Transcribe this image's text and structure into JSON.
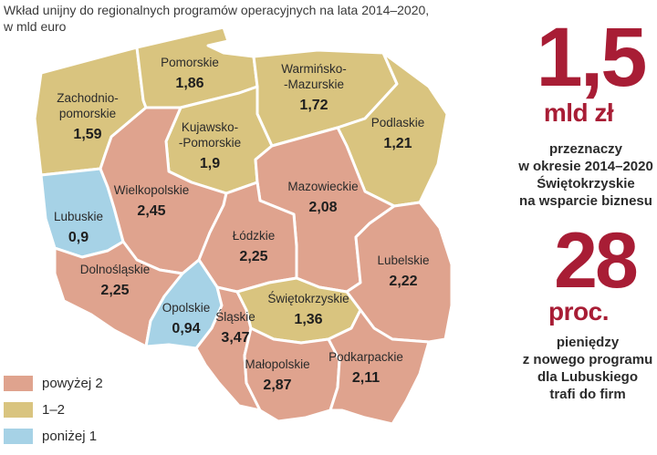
{
  "header": {
    "line1": "Wkład unijny do regionalnych programów operacyjnych na lata 2014–2020,",
    "line2": "w mld euro"
  },
  "colors": {
    "above_2": "#dfa38e",
    "from_1_to_2": "#d9c47f",
    "below_1": "#a6d2e6",
    "accent": "#a81d35",
    "border": "#ffffff"
  },
  "regions": [
    {
      "id": "zachodniopomorskie",
      "name_lines": [
        "Zachodnio-",
        "pomorskie"
      ],
      "value": "1,59",
      "category": "from_1_to_2"
    },
    {
      "id": "pomorskie",
      "name_lines": [
        "Pomorskie"
      ],
      "value": "1,86",
      "category": "from_1_to_2"
    },
    {
      "id": "warminsko-mazurskie",
      "name_lines": [
        "Warmińsko-",
        "-Mazurskie"
      ],
      "value": "1,72",
      "category": "from_1_to_2"
    },
    {
      "id": "podlaskie",
      "name_lines": [
        "Podlaskie"
      ],
      "value": "1,21",
      "category": "from_1_to_2"
    },
    {
      "id": "kujawsko-pomorskie",
      "name_lines": [
        "Kujawsko-",
        "-Pomorskie"
      ],
      "value": "1,9",
      "category": "from_1_to_2"
    },
    {
      "id": "lubuskie",
      "name_lines": [
        "Lubuskie"
      ],
      "value": "0,9",
      "category": "below_1"
    },
    {
      "id": "wielkopolskie",
      "name_lines": [
        "Wielkopolskie"
      ],
      "value": "2,45",
      "category": "above_2"
    },
    {
      "id": "mazowieckie",
      "name_lines": [
        "Mazowieckie"
      ],
      "value": "2,08",
      "category": "above_2"
    },
    {
      "id": "lodzkie",
      "name_lines": [
        "Łódzkie"
      ],
      "value": "2,25",
      "category": "above_2"
    },
    {
      "id": "dolnoslaskie",
      "name_lines": [
        "Dolnośląskie"
      ],
      "value": "2,25",
      "category": "above_2"
    },
    {
      "id": "lubelskie",
      "name_lines": [
        "Lubelskie"
      ],
      "value": "2,22",
      "category": "above_2"
    },
    {
      "id": "opolskie",
      "name_lines": [
        "Opolskie"
      ],
      "value": "0,94",
      "category": "below_1"
    },
    {
      "id": "slaskie",
      "name_lines": [
        "Śląskie"
      ],
      "value": "3,47",
      "category": "above_2"
    },
    {
      "id": "swietokrzyskie",
      "name_lines": [
        "Świętokrzyskie"
      ],
      "value": "1,36",
      "category": "from_1_to_2"
    },
    {
      "id": "malopolskie",
      "name_lines": [
        "Małopolskie"
      ],
      "value": "2,87",
      "category": "above_2"
    },
    {
      "id": "podkarpackie",
      "name_lines": [
        "Podkarpackie"
      ],
      "value": "2,11",
      "category": "above_2"
    }
  ],
  "legend": {
    "items": [
      {
        "label": "powyżej 2",
        "category": "above_2"
      },
      {
        "label": "1–2",
        "category": "from_1_to_2"
      },
      {
        "label": "poniżej 1",
        "category": "below_1"
      }
    ]
  },
  "side": {
    "stat1_number": "1,5",
    "stat1_unit": "mld zł",
    "stat1_desc": [
      "przeznaczy",
      "w okresie 2014–2020",
      "Świętokrzyskie",
      "na wsparcie biznesu"
    ],
    "stat2_number": "28",
    "stat2_unit": "proc.",
    "stat2_desc": [
      "pieniędzy",
      "z nowego programu",
      "dla Lubuskiego",
      "trafi do firm"
    ]
  }
}
